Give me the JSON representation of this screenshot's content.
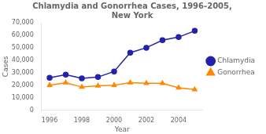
{
  "chart_data": {
    "type": "line",
    "title": "Chlamydia and Gonorrhea Cases, 1996-2005,\nNew York",
    "x_label": "Year",
    "y_label": "Cases",
    "x": [
      1996,
      1997,
      1998,
      1999,
      2000,
      2001,
      2002,
      2003,
      2004,
      2005
    ],
    "series": [
      {
        "name": "Chlamydia",
        "color": "#2222AA",
        "marker": "circle",
        "values": [
          26000,
          28500,
          25500,
          26500,
          31000,
          46000,
          50000,
          56000,
          58500,
          63500
        ]
      },
      {
        "name": "Gonorrhea",
        "color": "#FF8800",
        "marker": "triangle",
        "values": [
          20000,
          22000,
          18500,
          19500,
          20000,
          22000,
          21500,
          21500,
          18000,
          16500
        ]
      }
    ],
    "xlim": [
      1995.5,
      2005.5
    ],
    "xticks": [
      1996,
      1998,
      2000,
      2002,
      2004
    ],
    "ylim": [
      0,
      70000
    ],
    "yticks": [
      0,
      {
        "value": 10000,
        "label": "10,000"
      },
      {
        "value": 20000,
        "label": "20,000"
      },
      {
        "value": 30000,
        "label": "30,000"
      },
      {
        "value": 40000,
        "label": "40,000"
      },
      {
        "value": 50000,
        "label": "50,000"
      },
      {
        "value": 60000,
        "label": "60,000"
      },
      {
        "value": 70000,
        "label": "70,000"
      }
    ],
    "grid": false,
    "legend": "right"
  }
}
